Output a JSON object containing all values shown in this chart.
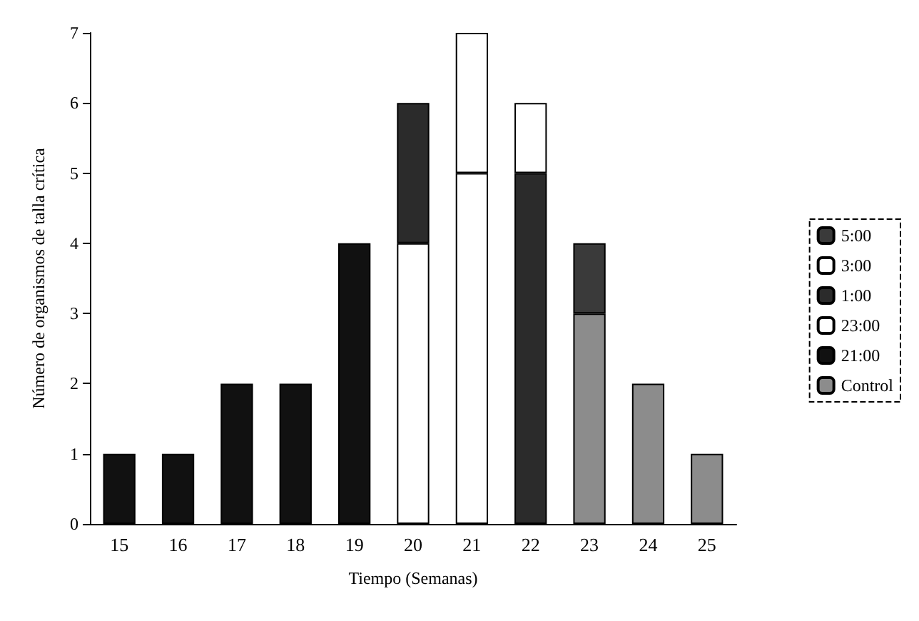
{
  "chart_data": {
    "type": "bar",
    "stacked": true,
    "xlabel": "Tiempo (Semanas)",
    "ylabel": "Número de organismos de talla crítica",
    "categories": [
      "15",
      "16",
      "17",
      "18",
      "19",
      "20",
      "21",
      "22",
      "23",
      "24",
      "25"
    ],
    "series": [
      {
        "name": "Control",
        "color": "#8c8c8c",
        "values": [
          null,
          null,
          null,
          null,
          null,
          null,
          null,
          null,
          3,
          2,
          1
        ]
      },
      {
        "name": "21:00",
        "color": "#111111",
        "values": [
          1,
          1,
          2,
          2,
          4,
          null,
          null,
          null,
          null,
          null,
          null
        ]
      },
      {
        "name": "23:00",
        "color": "#ffffff",
        "values": [
          null,
          null,
          null,
          null,
          null,
          4,
          5,
          null,
          null,
          null,
          null
        ]
      },
      {
        "name": "1:00",
        "color": "#2b2b2b",
        "values": [
          null,
          null,
          null,
          null,
          null,
          2,
          null,
          5,
          null,
          null,
          null
        ]
      },
      {
        "name": "3:00",
        "color": "#ffffff",
        "values": [
          null,
          null,
          null,
          null,
          null,
          null,
          2,
          1,
          null,
          null,
          null
        ]
      },
      {
        "name": "5:00",
        "color": "#3a3a3a",
        "values": [
          null,
          null,
          null,
          null,
          null,
          null,
          null,
          null,
          1,
          null,
          null
        ]
      }
    ],
    "ylim": [
      0,
      7
    ],
    "yticks": [
      0,
      1,
      2,
      3,
      4,
      5,
      6,
      7
    ],
    "grid": false,
    "legend": "right"
  }
}
